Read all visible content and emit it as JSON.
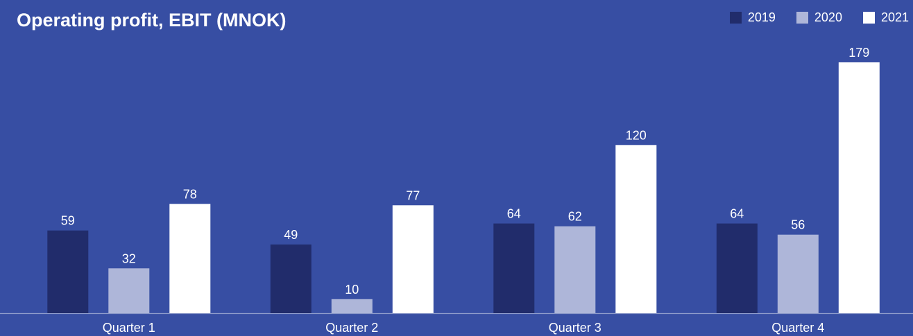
{
  "chart_data": {
    "type": "bar",
    "title": "Operating profit, EBIT (MNOK)",
    "xlabel": "",
    "ylabel": "",
    "categories": [
      "Quarter 1",
      "Quarter 2",
      "Quarter 3",
      "Quarter 4"
    ],
    "series": [
      {
        "name": "2019",
        "color": "#212c6b",
        "values": [
          59,
          49,
          64,
          64
        ]
      },
      {
        "name": "2020",
        "color": "#aeb6d9",
        "values": [
          32,
          10,
          62,
          56
        ]
      },
      {
        "name": "2021",
        "color": "#ffffff",
        "values": [
          78,
          77,
          120,
          179
        ]
      }
    ],
    "ylim": [
      0,
      179
    ],
    "grid": false,
    "legend_position": "top-right"
  }
}
